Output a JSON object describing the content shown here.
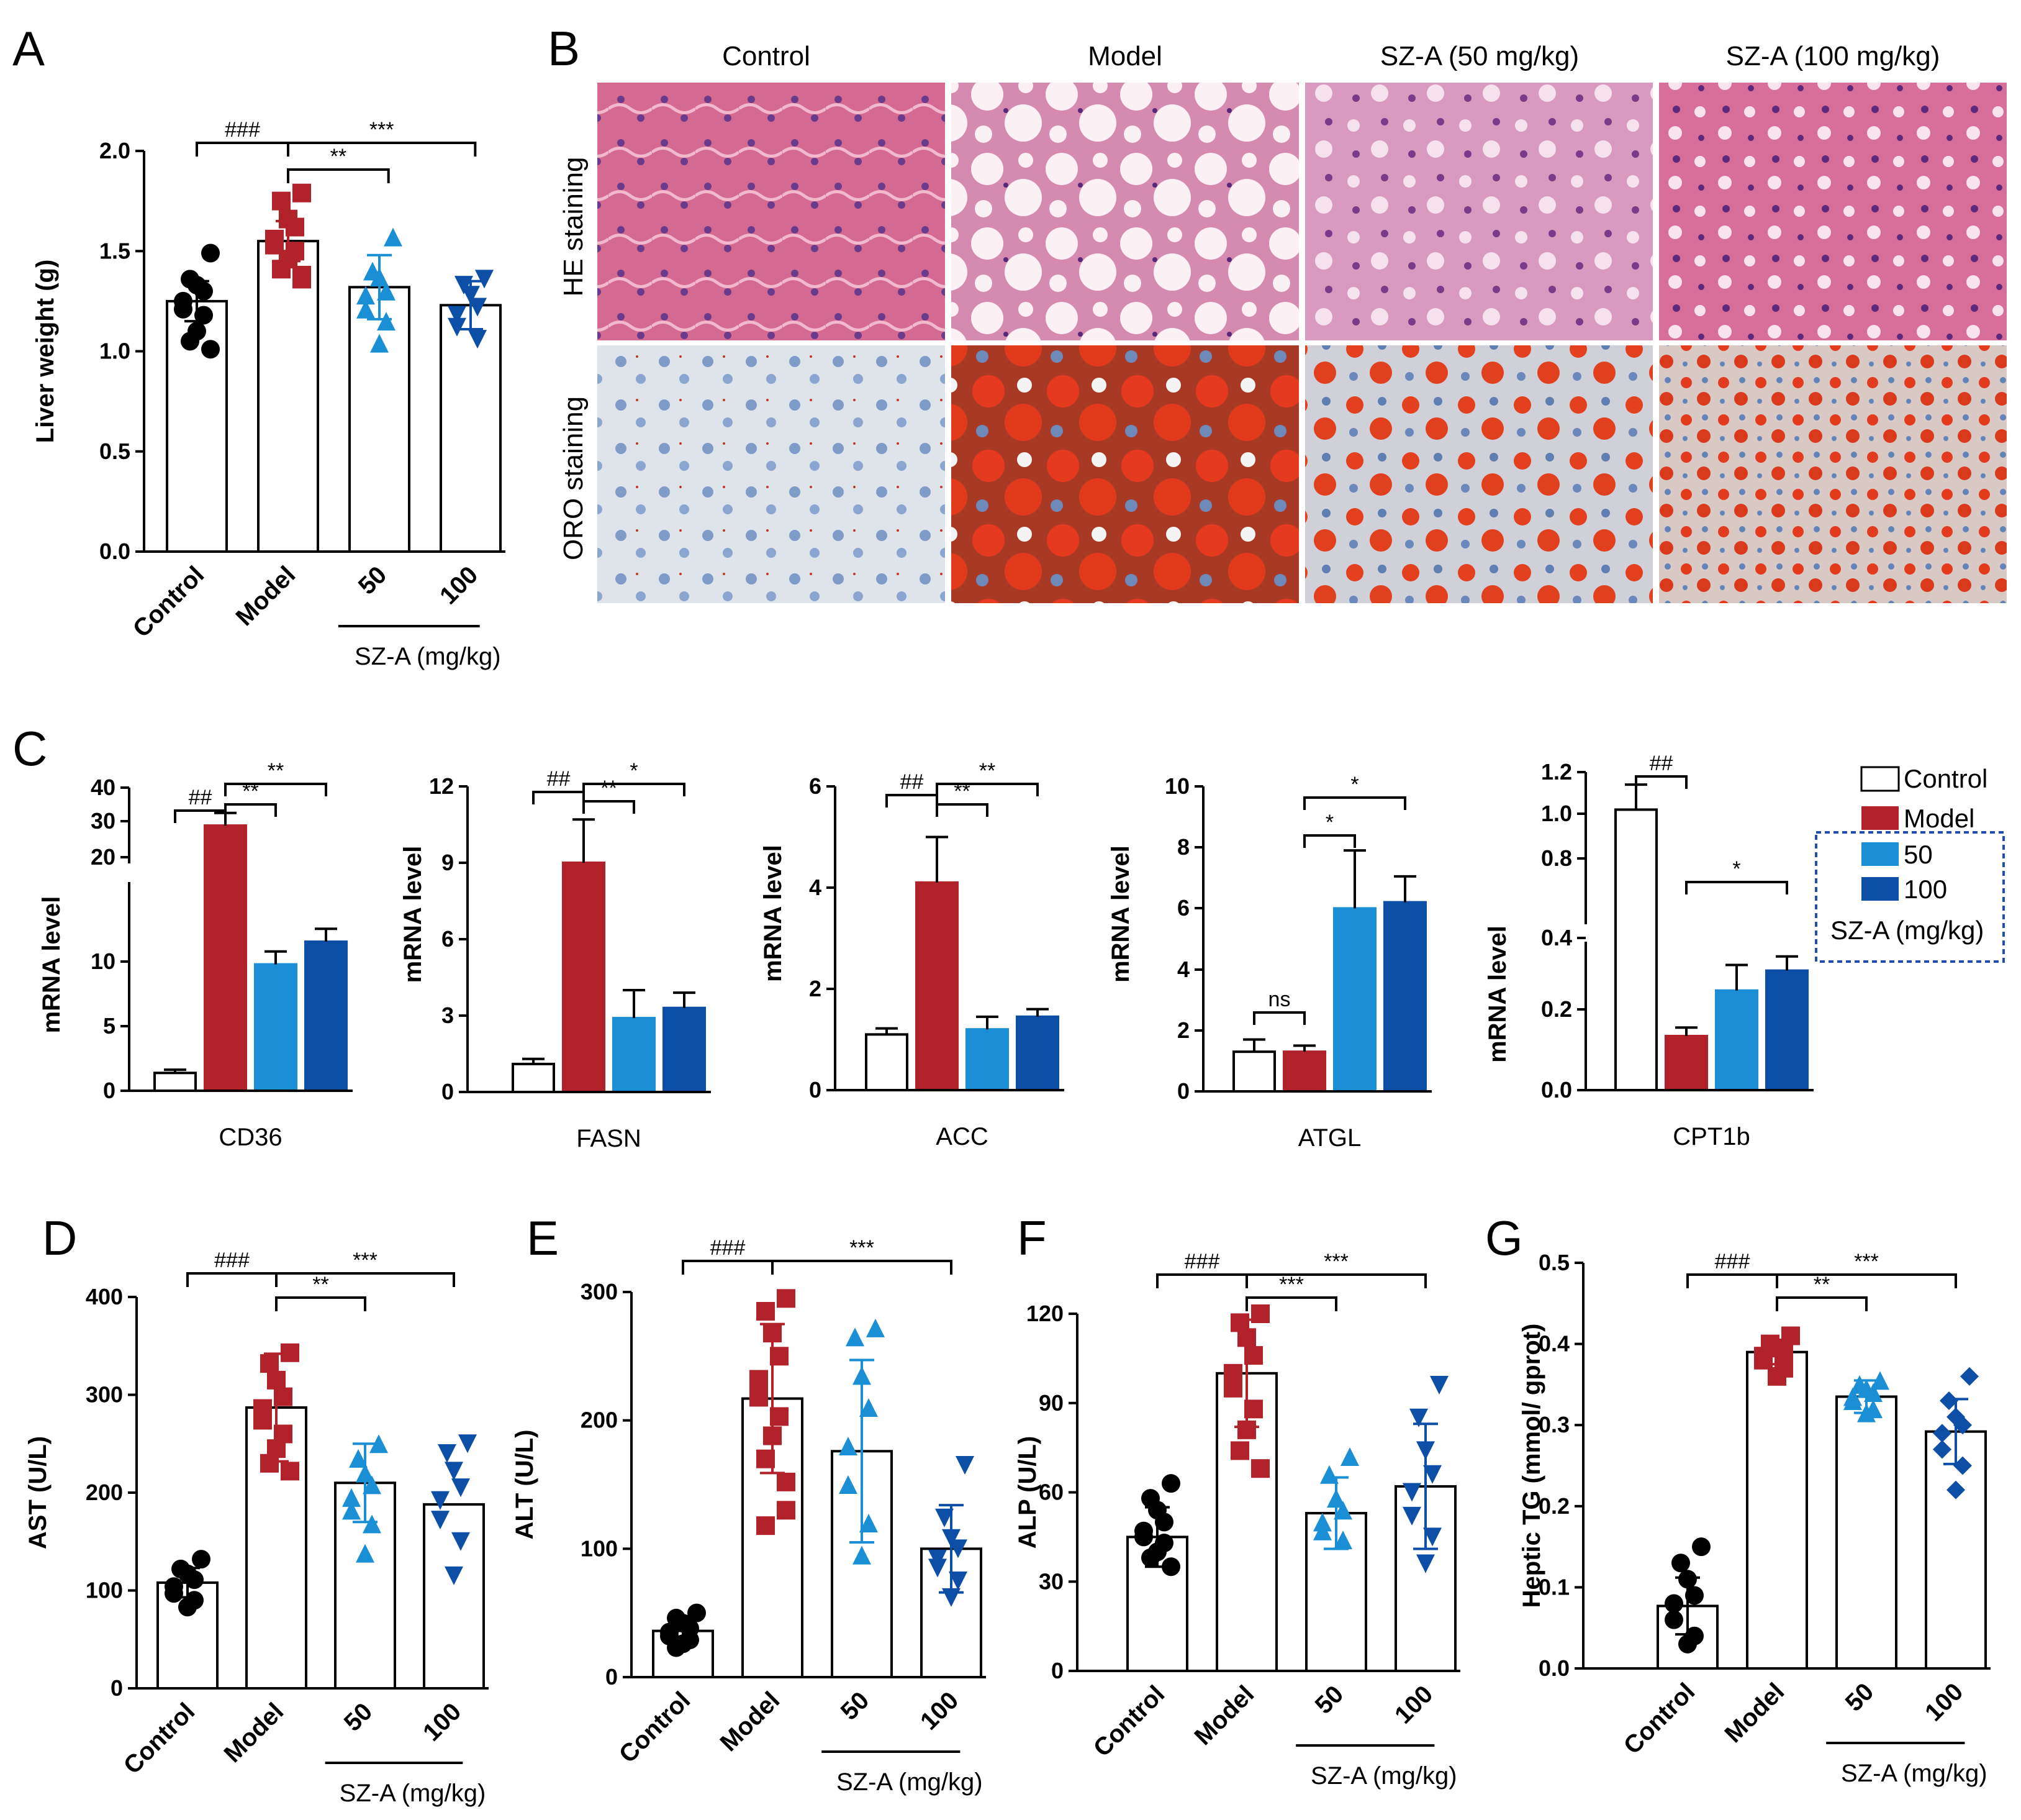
{
  "panel_labels": {
    "A": "A",
    "B": "B",
    "C": "C",
    "D": "D",
    "E": "E",
    "F": "F",
    "G": "G"
  },
  "colors": {
    "control": "#000000",
    "model": "#b2222a",
    "sz50": "#1a8fd6",
    "sz100": "#0d4ea6"
  },
  "panel_b": {
    "columns": [
      "Control",
      "Model",
      "SZ-A (50 mg/kg)",
      "SZ-A (100 mg/kg)"
    ],
    "rows": [
      "HE staining",
      "ORO staining"
    ]
  },
  "legend_c": {
    "entries": [
      "Control",
      "Model",
      "50",
      "100"
    ],
    "caption": "SZ-A (mg/kg)"
  },
  "chart_data": [
    {
      "panel": "A",
      "type": "bar",
      "ylabel": "Liver weight (g)",
      "ylim": [
        0,
        2.0
      ],
      "yticks": [
        "0.0",
        "0.5",
        "1.0",
        "1.5",
        "2.0"
      ],
      "categories": [
        "Control",
        "Model",
        "50",
        "100"
      ],
      "group_label": "SZ-A (mg/kg)",
      "values": [
        1.25,
        1.55,
        1.32,
        1.23
      ],
      "errors": [
        0.1,
        0.1,
        0.16,
        0.12
      ],
      "points": [
        [
          1.49,
          1.36,
          1.33,
          1.3,
          1.25,
          1.21,
          1.18,
          1.1,
          1.05,
          1.01
        ],
        [
          1.79,
          1.75,
          1.66,
          1.62,
          1.56,
          1.53,
          1.5,
          1.46,
          1.41,
          1.38,
          1.36
        ],
        [
          1.57,
          1.4,
          1.37,
          1.3,
          1.28,
          1.21,
          1.15,
          1.04
        ],
        [
          1.36,
          1.33,
          1.28,
          1.22,
          1.18,
          1.12,
          1.06
        ]
      ],
      "comparisons": [
        {
          "label": "###"
        },
        {
          "label": "**"
        },
        {
          "label": "***"
        }
      ]
    },
    {
      "panel": "C",
      "type": "bar",
      "xlabel": "CD36",
      "ylabel": "mRNA level",
      "yticks": [
        "0",
        "5",
        "10",
        "20",
        "30",
        "40"
      ],
      "axis_break": true,
      "values": [
        1.1,
        25,
        7.8,
        9.2
      ],
      "errors": [
        0.2,
        5,
        0.8,
        0.8
      ],
      "comparisons": [
        {
          "label": "##"
        },
        {
          "label": "**"
        },
        {
          "label": "**"
        }
      ]
    },
    {
      "panel": "C",
      "type": "bar",
      "xlabel": "FASN",
      "ylabel": "mRNA level",
      "ylim": [
        0,
        12
      ],
      "yticks": [
        "0",
        "3",
        "6",
        "9",
        "12"
      ],
      "values": [
        1.1,
        9.0,
        2.9,
        3.3
      ],
      "errors": [
        0.2,
        1.7,
        1.1,
        0.6
      ],
      "comparisons": [
        {
          "label": "##"
        },
        {
          "label": "**"
        },
        {
          "label": "*"
        }
      ]
    },
    {
      "panel": "C",
      "type": "bar",
      "xlabel": "ACC",
      "ylabel": "mRNA level",
      "ylim": [
        0,
        6
      ],
      "yticks": [
        "0",
        "2",
        "4",
        "6"
      ],
      "values": [
        1.1,
        4.1,
        1.2,
        1.45
      ],
      "errors": [
        0.12,
        0.9,
        0.25,
        0.15
      ],
      "comparisons": [
        {
          "label": "##"
        },
        {
          "label": "**"
        },
        {
          "label": "**"
        }
      ]
    },
    {
      "panel": "C",
      "type": "bar",
      "xlabel": "ATGL",
      "ylabel": "mRNA level",
      "ylim": [
        0,
        10
      ],
      "yticks": [
        "0",
        "2",
        "4",
        "6",
        "8",
        "10"
      ],
      "values": [
        1.3,
        1.3,
        6.0,
        6.2
      ],
      "errors": [
        0.4,
        0.2,
        1.9,
        0.85
      ],
      "comparisons": [
        {
          "label": "ns"
        },
        {
          "label": "*"
        },
        {
          "label": "*"
        }
      ]
    },
    {
      "panel": "C",
      "type": "bar",
      "xlabel": "CPT1b",
      "ylabel": "mRNA level",
      "axis_break": true,
      "yticks": [
        "0.0",
        "0.2",
        "0.4",
        "0.8",
        "1.0",
        "1.2"
      ],
      "values": [
        1.02,
        0.19,
        0.35,
        0.42
      ],
      "errors": [
        0.12,
        0.03,
        0.09,
        0.05
      ],
      "comparisons": [
        {
          "label": "##"
        },
        {
          "label": "*"
        }
      ]
    },
    {
      "panel": "D",
      "type": "bar",
      "ylabel": "AST (U/L)",
      "ylim": [
        0,
        400
      ],
      "yticks": [
        "0",
        "100",
        "200",
        "300",
        "400"
      ],
      "categories": [
        "Control",
        "Model",
        "50",
        "100"
      ],
      "group_label": "SZ-A (mg/kg)",
      "values": [
        108,
        287,
        210,
        188
      ],
      "errors": [
        15,
        55,
        40,
        0
      ],
      "points": [
        [
          132,
          122,
          117,
          111,
          104,
          97,
          90,
          83
        ],
        [
          343,
          332,
          315,
          298,
          286,
          274,
          260,
          245,
          230,
          222
        ],
        [
          250,
          235,
          220,
          208,
          195,
          182,
          168,
          138
        ],
        [
          250,
          240,
          222,
          205,
          192,
          172,
          150,
          115
        ]
      ],
      "comparisons": [
        {
          "label": "###"
        },
        {
          "label": "**"
        },
        {
          "label": "***"
        }
      ]
    },
    {
      "panel": "E",
      "type": "bar",
      "ylabel": "ALT (U/L)",
      "ylim": [
        0,
        300
      ],
      "yticks": [
        "0",
        "100",
        "200",
        "300"
      ],
      "categories": [
        "Control",
        "Model",
        "50",
        "100"
      ],
      "group_label": "SZ-A (mg/kg)",
      "values": [
        36,
        217,
        176,
        100
      ],
      "errors": [
        10,
        58,
        71,
        34
      ],
      "points": [
        [
          50,
          46,
          42,
          38,
          35,
          32,
          29,
          26,
          23
        ],
        [
          295,
          285,
          268,
          250,
          232,
          218,
          203,
          188,
          170,
          152,
          130,
          118
        ],
        [
          272,
          265,
          235,
          210,
          180,
          150,
          120,
          95
        ],
        [
          165,
          124,
          108,
          100,
          92,
          85,
          75,
          62
        ]
      ],
      "comparisons": [
        {
          "label": "###"
        },
        {
          "label": "***"
        }
      ]
    },
    {
      "panel": "F",
      "type": "bar",
      "ylabel": "ALP (U/L)",
      "ylim": [
        0,
        120
      ],
      "yticks": [
        "0",
        "30",
        "60",
        "90",
        "120"
      ],
      "categories": [
        "Control",
        "Model",
        "50",
        "100"
      ],
      "group_label": "SZ-A (mg/kg)",
      "values": [
        45,
        100,
        53,
        62
      ],
      "errors": [
        10,
        18,
        12,
        21
      ],
      "points": [
        [
          63,
          58,
          54,
          50,
          47,
          45,
          43,
          40,
          38,
          35
        ],
        [
          120,
          117,
          112,
          106,
          100,
          95,
          88,
          81,
          74,
          68
        ],
        [
          72,
          66,
          58,
          54,
          50,
          47,
          44
        ],
        [
          96,
          85,
          74,
          66,
          60,
          52,
          45,
          36
        ]
      ],
      "comparisons": [
        {
          "label": "###"
        },
        {
          "label": "***"
        },
        {
          "label": "***"
        }
      ]
    },
    {
      "panel": "G",
      "type": "bar",
      "ylabel": "Heptic TG (mmol/ gprot)",
      "ylim": [
        0,
        0.5
      ],
      "yticks": [
        "0.0",
        "0.1",
        "0.2",
        "0.3",
        "0.4",
        "0.5"
      ],
      "categories": [
        "Control",
        "Model",
        "50",
        "100"
      ],
      "group_label": "SZ-A (mg/kg)",
      "values": [
        0.077,
        0.39,
        0.335,
        0.292
      ],
      "errors": [
        0.035,
        0.015,
        0.02,
        0.04
      ],
      "points": [
        [
          0.15,
          0.13,
          0.11,
          0.09,
          0.08,
          0.06,
          0.04,
          0.03
        ],
        [
          0.41,
          0.4,
          0.395,
          0.39,
          0.385,
          0.38,
          0.37,
          0.36
        ],
        [
          0.355,
          0.35,
          0.345,
          0.34,
          0.335,
          0.33,
          0.32,
          0.315
        ],
        [
          0.36,
          0.33,
          0.31,
          0.3,
          0.29,
          0.27,
          0.25,
          0.22
        ]
      ],
      "comparisons": [
        {
          "label": "###"
        },
        {
          "label": "**"
        },
        {
          "label": "***"
        }
      ]
    }
  ]
}
